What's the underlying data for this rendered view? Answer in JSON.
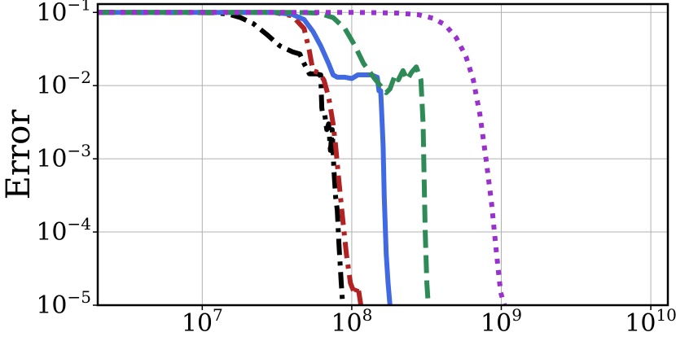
{
  "chart_data": {
    "type": "line",
    "title": "",
    "xlabel": "",
    "ylabel": "Error",
    "x_scale": "log",
    "y_scale": "log",
    "xlim": [
      2000000,
      13000000000
    ],
    "ylim": [
      1e-05,
      0.13
    ],
    "grid": true,
    "x_ticks": [
      {
        "value": 10000000,
        "base": "10",
        "exp": "7"
      },
      {
        "value": 100000000,
        "base": "10",
        "exp": "8"
      },
      {
        "value": 1000000000,
        "base": "10",
        "exp": "9"
      },
      {
        "value": 10000000000,
        "base": "10",
        "exp": "10"
      }
    ],
    "y_ticks": [
      {
        "value": 0.1,
        "base": "10",
        "exp": "−1"
      },
      {
        "value": 0.01,
        "base": "10",
        "exp": "−2"
      },
      {
        "value": 0.001,
        "base": "10",
        "exp": "−3"
      },
      {
        "value": 0.0001,
        "base": "10",
        "exp": "−4"
      },
      {
        "value": 1e-05,
        "base": "10",
        "exp": "−5"
      }
    ],
    "series": [
      {
        "color": "#000000",
        "style": "dashdot",
        "points": [
          [
            2000000,
            0.1
          ],
          [
            12000000,
            0.099
          ],
          [
            15000000,
            0.095
          ],
          [
            18000000,
            0.085
          ],
          [
            22000000,
            0.07
          ],
          [
            27000000,
            0.05
          ],
          [
            33000000,
            0.035
          ],
          [
            40000000,
            0.029
          ],
          [
            45000000,
            0.027
          ],
          [
            48000000,
            0.02
          ],
          [
            52000000,
            0.0145
          ],
          [
            58000000,
            0.0145
          ],
          [
            62000000,
            0.014
          ],
          [
            63000000,
            0.005
          ],
          [
            64000000,
            0.004
          ],
          [
            66000000,
            0.004
          ],
          [
            68000000,
            0.0025
          ],
          [
            70000000,
            0.003
          ],
          [
            72000000,
            0.0013
          ],
          [
            74000000,
            0.0025
          ],
          [
            76000000,
            0.0007
          ],
          [
            78000000,
            0.0003
          ],
          [
            80000000,
            0.0002
          ],
          [
            82000000,
            7e-05
          ],
          [
            85000000,
            2e-05
          ],
          [
            87000000,
            1e-05
          ]
        ]
      },
      {
        "color": "#b22222",
        "style": "dashdot",
        "points": [
          [
            2000000,
            0.1
          ],
          [
            30000000,
            0.1
          ],
          [
            40000000,
            0.09
          ],
          [
            48000000,
            0.06
          ],
          [
            52000000,
            0.03
          ],
          [
            55000000,
            0.016
          ],
          [
            60000000,
            0.015
          ],
          [
            65000000,
            0.012
          ],
          [
            70000000,
            0.007
          ],
          [
            75000000,
            0.003
          ],
          [
            78000000,
            0.0015
          ],
          [
            82000000,
            0.0005
          ],
          [
            87000000,
            0.00015
          ],
          [
            92000000,
            5e-05
          ],
          [
            98000000,
            2e-05
          ],
          [
            105000000,
            1.4e-05
          ],
          [
            110000000,
            1.8e-05
          ],
          [
            115000000,
            1e-05
          ]
        ]
      },
      {
        "color": "#4169e1",
        "style": "solid",
        "points": [
          [
            2000000,
            0.1
          ],
          [
            30000000,
            0.1
          ],
          [
            40000000,
            0.094
          ],
          [
            48000000,
            0.08
          ],
          [
            55000000,
            0.055
          ],
          [
            62000000,
            0.035
          ],
          [
            70000000,
            0.02
          ],
          [
            75000000,
            0.014
          ],
          [
            80000000,
            0.013
          ],
          [
            90000000,
            0.013
          ],
          [
            100000000,
            0.0125
          ],
          [
            110000000,
            0.014
          ],
          [
            120000000,
            0.014
          ],
          [
            135000000,
            0.014
          ],
          [
            148000000,
            0.013
          ],
          [
            152000000,
            0.0085
          ],
          [
            156000000,
            0.0085
          ],
          [
            158000000,
            0.005
          ],
          [
            162000000,
            0.0015
          ],
          [
            165000000,
            0.0003
          ],
          [
            170000000,
            5e-05
          ],
          [
            175000000,
            2e-05
          ],
          [
            180000000,
            1e-05
          ]
        ]
      },
      {
        "color": "#2e8b57",
        "style": "dashed",
        "points": [
          [
            2000000,
            0.1
          ],
          [
            40000000,
            0.1
          ],
          [
            60000000,
            0.098
          ],
          [
            75000000,
            0.085
          ],
          [
            90000000,
            0.06
          ],
          [
            105000000,
            0.035
          ],
          [
            120000000,
            0.02
          ],
          [
            140000000,
            0.013
          ],
          [
            155000000,
            0.01
          ],
          [
            170000000,
            0.008
          ],
          [
            180000000,
            0.009
          ],
          [
            195000000,
            0.014
          ],
          [
            205000000,
            0.012
          ],
          [
            220000000,
            0.016
          ],
          [
            235000000,
            0.012
          ],
          [
            250000000,
            0.015
          ],
          [
            270000000,
            0.018
          ],
          [
            290000000,
            0.012
          ],
          [
            300000000,
            0.003
          ],
          [
            305000000,
            0.0005
          ],
          [
            310000000,
            0.0001
          ],
          [
            318000000,
            2e-05
          ],
          [
            325000000,
            1e-05
          ]
        ]
      },
      {
        "color": "#9932cc",
        "style": "dotted",
        "points": [
          [
            2000000,
            0.1
          ],
          [
            100000000,
            0.1
          ],
          [
            200000000,
            0.098
          ],
          [
            280000000,
            0.093
          ],
          [
            350000000,
            0.083
          ],
          [
            420000000,
            0.068
          ],
          [
            500000000,
            0.045
          ],
          [
            580000000,
            0.025
          ],
          [
            650000000,
            0.012
          ],
          [
            720000000,
            0.004
          ],
          [
            790000000,
            0.001
          ],
          [
            860000000,
            0.00025
          ],
          [
            930000000,
            5e-05
          ],
          [
            990000000,
            1.5e-05
          ],
          [
            1050000000,
            1e-05
          ]
        ]
      }
    ]
  }
}
